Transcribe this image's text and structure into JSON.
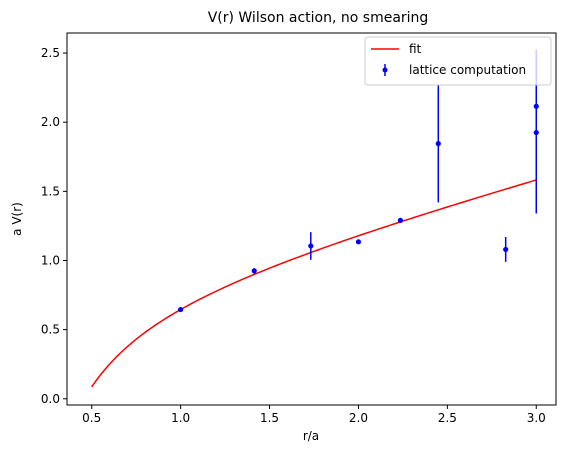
{
  "chart_data": {
    "type": "scatter",
    "title": "V(r) Wilson action, no smearing",
    "xlabel": "r/a",
    "ylabel": "a V(r)",
    "xlim": [
      0.361,
      3.111
    ],
    "ylim": [
      -0.045,
      2.645
    ],
    "xticks": [
      0.5,
      1.0,
      1.5,
      2.0,
      2.5,
      3.0
    ],
    "xtick_labels": [
      "0.5",
      "1.0",
      "1.5",
      "2.0",
      "2.5",
      "3.0"
    ],
    "yticks": [
      0.0,
      0.5,
      1.0,
      1.5,
      2.0,
      2.5
    ],
    "ytick_labels": [
      "0.0",
      "0.5",
      "1.0",
      "1.5",
      "2.0",
      "2.5"
    ],
    "grid": false,
    "legend": {
      "location": "top-right",
      "entries": [
        {
          "label": "fit",
          "kind": "line",
          "color": "#ff0000"
        },
        {
          "label": "lattice computation",
          "kind": "errorbar",
          "color": "#0000ff"
        }
      ]
    },
    "series": [
      {
        "name": "lattice computation",
        "kind": "errorbar",
        "color": "#0000ff",
        "points": [
          {
            "x": 1.0,
            "y": 0.645,
            "yerr": 0.0
          },
          {
            "x": 1.414,
            "y": 0.925,
            "yerr": 0.02
          },
          {
            "x": 1.732,
            "y": 1.105,
            "yerr": 0.1
          },
          {
            "x": 2.0,
            "y": 1.135,
            "yerr": 0.01
          },
          {
            "x": 2.236,
            "y": 1.29,
            "yerr": 0.0
          },
          {
            "x": 2.449,
            "y": 1.845,
            "yerr": 0.425
          },
          {
            "x": 2.828,
            "y": 1.08,
            "yerr": 0.09
          },
          {
            "x": 3.0,
            "y": 2.115,
            "yerr": 0.41
          },
          {
            "x": 3.0,
            "y": 1.925,
            "yerr": 0.585
          }
        ]
      },
      {
        "name": "fit",
        "kind": "line",
        "color": "#ff0000",
        "function": "b*r - c/r + d",
        "params": {
          "b": 0.3385,
          "c": 0.39,
          "d": 0.6967
        },
        "x_range": [
          0.5,
          3.0
        ],
        "samples": 120
      }
    ]
  }
}
